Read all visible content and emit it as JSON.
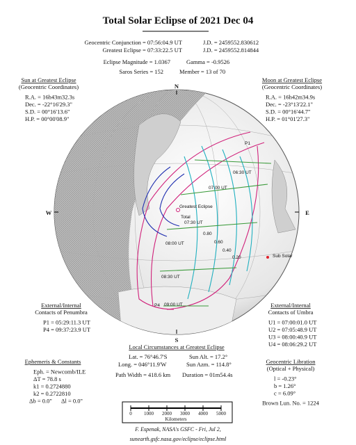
{
  "title": "Total Solar Eclipse of  2021 Dec 04",
  "header": {
    "conjunction": "Geocentric Conjunction = 07:56:04.9 UT",
    "conjunction_jd": "J.D. = 2459552.830612",
    "greatest": "Greatest Eclipse = 07:33:22.5 UT",
    "greatest_jd": "J.D. = 2459552.814844",
    "magnitude": "Eclipse Magnitude = 1.0367",
    "gamma": "Gamma = -0.9526",
    "saros": "Saros Series = 152",
    "member": "Member = 13 of 70"
  },
  "sun": {
    "title": "Sun at Greatest Eclipse",
    "subtitle": "(Geocentric Coordinates)",
    "lines": [
      "R.A. = 16h43m32.3s",
      "Dec. = -22°16'29.3\"",
      "S.D. = 00°16'13.6\"",
      "H.P. = 00°00'08.9\""
    ]
  },
  "moon": {
    "title": "Moon at Greatest Eclipse",
    "subtitle": "(Geocentric Coordinates)",
    "lines": [
      "R.A. = 16h42m34.9s",
      "Dec. = -23°13'22.1\"",
      "S.D. = 00°16'44.7\"",
      "H.P. = 01°01'27.3\""
    ]
  },
  "compass": {
    "n": "N",
    "s": "S",
    "w": "W",
    "e": "E"
  },
  "map_labels": {
    "p1": "P1",
    "p4": "P4",
    "greatest": "Greatest Eclipse",
    "total": "Total",
    "sub_solar": "Sub Solar",
    "t0630": "06:30 UT",
    "t0700": "07:00 UT",
    "t0730": "07:30 UT",
    "t0800": "08:00 UT",
    "t0830": "08:30 UT",
    "t0900": "09:00 UT",
    "m80": "0.80",
    "m60": "0.60",
    "m40": "0.40",
    "m20": "0.20"
  },
  "penumbra": {
    "title": "External/Internal",
    "subtitle": "Contacts of Penumbra",
    "lines": [
      "P1 = 05:29:11.3 UT",
      "P4 = 09:37:23.9 UT"
    ]
  },
  "umbra": {
    "title": "External/Internal",
    "subtitle": "Contacts of Umbra",
    "lines": [
      "U1 = 07:00:01.0 UT",
      "U2 = 07:05:48.9 UT",
      "U3 = 08:00:40.9 UT",
      "U4 = 08:06:29.2 UT"
    ]
  },
  "local": {
    "title": "Local Circumstances at Greatest Eclipse",
    "lat": "Lat. =  76°46.7'S",
    "sun_alt": "Sun Alt. =  17.2°",
    "long": "Long. = 046°11.9'W",
    "sun_azm": "Sun Azm. = 114.8°",
    "path_width": "Path Width = 418.6 km",
    "duration": "Duration = 01m54.4s"
  },
  "ephemeris": {
    "title": "Ephemeris & Constants",
    "lines": [
      "Eph. = Newcomb/ILE",
      "ΔT =    78.8 s",
      "k1 = 0.2724880",
      "k2 = 0.2722810"
    ],
    "db": "Δb =  0.0\"",
    "dl": "Δl =  0.0\""
  },
  "libration": {
    "title": "Geocentric Libration",
    "subtitle": "(Optical + Physical)",
    "lines": [
      "l =  -0.23°",
      "b =   1.26°",
      "c =   6.09°"
    ],
    "brown": "Brown Lun. No. = 1224"
  },
  "scale": {
    "ticks": [
      0,
      1000,
      2000,
      3000,
      4000,
      5000
    ],
    "label": "Kilometers"
  },
  "footer": {
    "credit": "F. Espenak, NASA's GSFC - Fri, Jul 2,",
    "url": "sunearth.gsfc.nasa.gov/eclipse/eclipse.html"
  }
}
